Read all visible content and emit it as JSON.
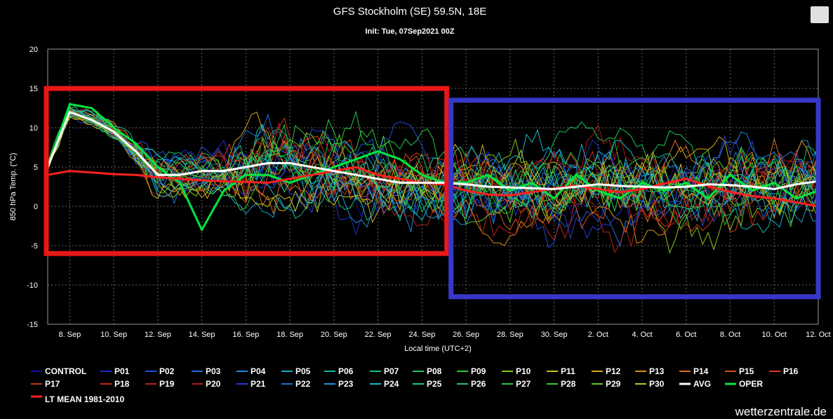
{
  "chart_data": {
    "type": "line",
    "title": "GFS Stockholm (SE) 59.5N, 18E",
    "subtitle": "Init: Tue, 07Sep2021 00Z",
    "ylabel": "850 hPa Temp. (°C)",
    "xlabel": "Local time (UTC+2)",
    "ylim": [
      -15,
      20
    ],
    "yticks": [
      "20",
      "15",
      "10",
      "5",
      "0",
      "-5",
      "-10",
      "-15"
    ],
    "xticks": [
      "8. Sep",
      "10. Sep",
      "12. Sep",
      "14. Sep",
      "16. Sep",
      "18. Sep",
      "20. Sep",
      "22. Sep",
      "24. Sep",
      "26. Sep",
      "28. Sep",
      "30. Sep",
      "2. Oct",
      "4. Oct",
      "6. Oct",
      "8. Oct",
      "10. Oct",
      "12. Oct"
    ],
    "x_start": "7. Sep",
    "x_end": "12. Oct",
    "grid": true,
    "legend_position": "bottom",
    "ensemble_members": [
      "CONTROL",
      "P01",
      "P02",
      "P03",
      "P04",
      "P05",
      "P06",
      "P07",
      "P08",
      "P09",
      "P10",
      "P11",
      "P12",
      "P13",
      "P14",
      "P15",
      "P16",
      "P17",
      "P18",
      "P19",
      "P20",
      "P21",
      "P22",
      "P23",
      "P24",
      "P25",
      "P26",
      "P27",
      "P28",
      "P29",
      "P30"
    ],
    "member_colors": [
      "#1010a8",
      "#1a2ec8",
      "#1e50d8",
      "#1c6ee0",
      "#1a8ae0",
      "#18a8d0",
      "#18b8a8",
      "#18c080",
      "#18c858",
      "#30c830",
      "#80c820",
      "#c8c020",
      "#d8a818",
      "#d89018",
      "#d87018",
      "#d85018",
      "#d83818",
      "#c83018",
      "#c02818",
      "#b82018",
      "#a81818",
      "#2a3ad0",
      "#1f66d4",
      "#1a9ad8",
      "#18b8c8",
      "#18c898",
      "#20c868",
      "#28c848",
      "#38c838",
      "#60c828",
      "#c8c020"
    ],
    "series": [
      {
        "name": "AVG",
        "color": "#ffffff",
        "values": [
          5,
          12,
          11,
          9.5,
          7,
          4,
          4,
          4.5,
          4.5,
          5,
          5.5,
          5.5,
          5,
          4.5,
          4,
          3.5,
          3,
          3,
          3,
          2.8,
          2.5,
          2.4,
          2.3,
          2.2,
          2.5,
          2.8,
          2.6,
          2.5,
          2.4,
          2.5,
          2.8,
          2.7,
          2.5,
          2.2,
          2.8,
          3.2
        ]
      },
      {
        "name": "OPER",
        "color": "#00e640",
        "values": [
          5,
          13,
          12.5,
          10,
          8,
          5,
          3,
          -3,
          2,
          4,
          4,
          3,
          4,
          5,
          6,
          7,
          6,
          4,
          3,
          3,
          4,
          2,
          3,
          1,
          4,
          2,
          1,
          3,
          2,
          3,
          1,
          4,
          2,
          3,
          1,
          2
        ]
      },
      {
        "name": "LT MEAN 1981-2010",
        "color": "#ff2020",
        "values": [
          4,
          4.5,
          4.3,
          4.1,
          4,
          3.7,
          3.5,
          3.3,
          3.2,
          3.1,
          3.0,
          3.5,
          4,
          4.5,
          5,
          4,
          3.5,
          3,
          2.8,
          2,
          1.5,
          1.4,
          1.8,
          2.3,
          2.6,
          2.2,
          1.8,
          2.2,
          2.9,
          3.5,
          2.6,
          1.8,
          1.3,
          1,
          0.5,
          0
        ]
      }
    ],
    "annotations": [
      {
        "shape": "rectangle",
        "color": "#e81818",
        "from": "7. Sep",
        "to": "25. Sep",
        "y_range": [
          -6,
          15
        ]
      },
      {
        "shape": "rectangle",
        "color": "#3838c8",
        "from": "25. Sep",
        "to": "12. Oct",
        "y_range": [
          -11.5,
          13.5
        ]
      }
    ]
  },
  "credit": "wetterzentrale.de",
  "menu_icon": "hamburger-menu-icon"
}
